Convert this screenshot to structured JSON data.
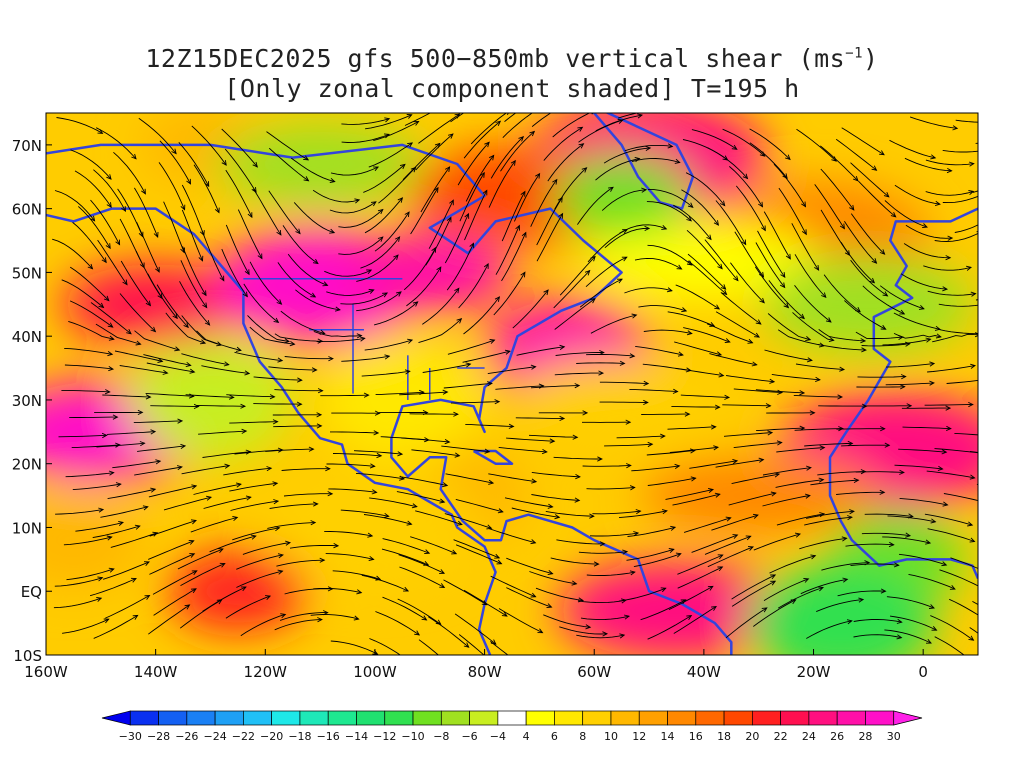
{
  "title": {
    "line1": "12Z15DEC2025 gfs 500−850mb vertical shear (ms",
    "line1_unit_exp": "−1",
    "line1_end": ")",
    "line2": "[Only zonal component shaded] T=195 h"
  },
  "map": {
    "lon_range": [
      -160,
      10
    ],
    "lat_range": [
      -10,
      75
    ],
    "lon_ticks": [
      {
        "value": -160,
        "label": "160W"
      },
      {
        "value": -140,
        "label": "140W"
      },
      {
        "value": -120,
        "label": "120W"
      },
      {
        "value": -100,
        "label": "100W"
      },
      {
        "value": -80,
        "label": "80W"
      },
      {
        "value": -60,
        "label": "60W"
      },
      {
        "value": -40,
        "label": "40W"
      },
      {
        "value": -20,
        "label": "20W"
      },
      {
        "value": 0,
        "label": "0"
      }
    ],
    "lat_ticks": [
      {
        "value": 70,
        "label": "70N"
      },
      {
        "value": 60,
        "label": "60N"
      },
      {
        "value": 50,
        "label": "50N"
      },
      {
        "value": 40,
        "label": "40N"
      },
      {
        "value": 30,
        "label": "30N"
      },
      {
        "value": 20,
        "label": "20N"
      },
      {
        "value": 10,
        "label": "10N"
      },
      {
        "value": 0,
        "label": "EQ"
      },
      {
        "value": -10,
        "label": "10S"
      }
    ],
    "coastline_color": "#3344dd",
    "streamline_color": "#000000"
  },
  "shear_bands": [
    {
      "lon": -140,
      "lat": 45,
      "value": 22
    },
    {
      "lon": -150,
      "lat": 25,
      "value": 28
    },
    {
      "lon": -110,
      "lat": 48,
      "value": 28
    },
    {
      "lon": -90,
      "lat": 50,
      "value": 26
    },
    {
      "lon": -65,
      "lat": 38,
      "value": 26
    },
    {
      "lon": -50,
      "lat": 68,
      "value": 24
    },
    {
      "lon": -125,
      "lat": 0,
      "value": 20
    },
    {
      "lon": -45,
      "lat": -3,
      "value": 24
    },
    {
      "lon": -5,
      "lat": 22,
      "value": 24
    },
    {
      "lon": -130,
      "lat": 70,
      "value": 10
    },
    {
      "lon": -75,
      "lat": 62,
      "value": 18
    },
    {
      "lon": -20,
      "lat": 55,
      "value": 14
    },
    {
      "lon": -30,
      "lat": 15,
      "value": 14
    },
    {
      "lon": -85,
      "lat": 15,
      "value": 10
    },
    {
      "lon": -100,
      "lat": 10,
      "value": 8
    },
    {
      "lon": -55,
      "lat": 30,
      "value": 8
    },
    {
      "lon": -155,
      "lat": 8,
      "value": 10
    },
    {
      "lon": -95,
      "lat": 30,
      "value": 6
    },
    {
      "lon": -40,
      "lat": 52,
      "value": 4
    },
    {
      "lon": -5,
      "lat": 5,
      "value": -10
    },
    {
      "lon": -15,
      "lat": -5,
      "value": -12
    },
    {
      "lon": -55,
      "lat": 62,
      "value": -10
    },
    {
      "lon": -10,
      "lat": 45,
      "value": -8
    },
    {
      "lon": -130,
      "lat": 30,
      "value": -6
    },
    {
      "lon": -110,
      "lat": 67,
      "value": -8
    }
  ],
  "colorbar": {
    "levels": [
      -30,
      -28,
      -26,
      -24,
      -22,
      -20,
      -18,
      -16,
      -14,
      -12,
      -10,
      -8,
      -6,
      -4,
      4,
      6,
      8,
      10,
      12,
      14,
      16,
      18,
      20,
      22,
      24,
      26,
      28,
      30
    ],
    "labels": [
      "−30",
      "−28",
      "−26",
      "−24",
      "−22",
      "−20",
      "−18",
      "−16",
      "−14",
      "−12",
      "−10",
      "−8",
      "−6",
      "−4",
      "4",
      "6",
      "8",
      "10",
      "12",
      "14",
      "16",
      "18",
      "20",
      "22",
      "24",
      "26",
      "28",
      "30"
    ],
    "colors": [
      "#0000ee",
      "#0a30f0",
      "#1460f2",
      "#1a80f4",
      "#1ea0f5",
      "#20c0f6",
      "#1ee8e8",
      "#1ee8b8",
      "#1ee890",
      "#20e070",
      "#30e050",
      "#70e020",
      "#a0e020",
      "#c8ee20",
      "#ffffff",
      "#ffff00",
      "#ffe800",
      "#ffd000",
      "#ffb800",
      "#ffa000",
      "#ff8800",
      "#ff6800",
      "#ff4800",
      "#ff2020",
      "#ff1050",
      "#ff1080",
      "#ff10a8",
      "#ff10c8",
      "#ff20e8"
    ]
  }
}
